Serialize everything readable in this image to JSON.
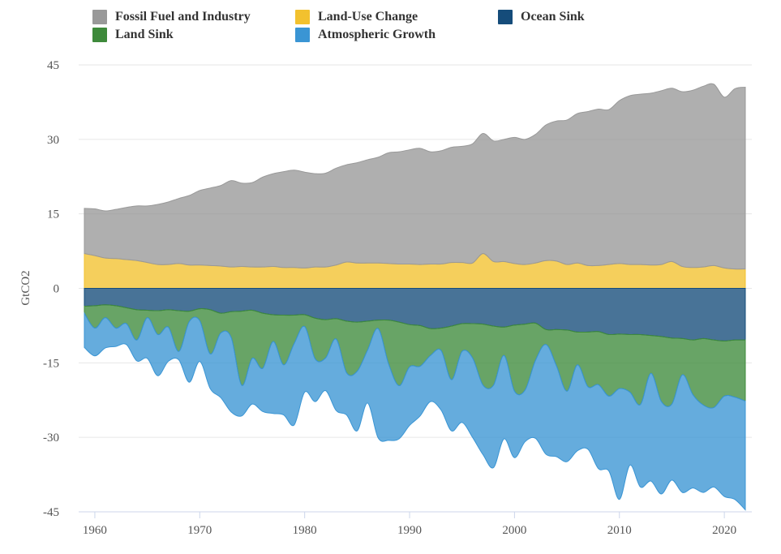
{
  "chart_data": {
    "type": "area",
    "ylabel": "GtCO2",
    "ylim": [
      -45,
      45
    ],
    "yticks": [
      45,
      30,
      15,
      0,
      -15,
      -30,
      -45
    ],
    "xlim": [
      1959,
      2022
    ],
    "xticks": [
      1960,
      1970,
      1980,
      1990,
      2000,
      2010,
      2020
    ],
    "grid": true,
    "legend_position": "top",
    "legend": [
      {
        "name": "Fossil Fuel and Industry",
        "color": "#999999"
      },
      {
        "name": "Land-Use Change",
        "color": "#f2c12e"
      },
      {
        "name": "Ocean Sink",
        "color": "#154c7a"
      },
      {
        "name": "Land Sink",
        "color": "#3e8a3b"
      },
      {
        "name": "Atmospheric Growth",
        "color": "#3a95d4"
      }
    ],
    "x": [
      1959,
      1960,
      1961,
      1962,
      1963,
      1964,
      1965,
      1966,
      1967,
      1968,
      1969,
      1970,
      1971,
      1972,
      1973,
      1974,
      1975,
      1976,
      1977,
      1978,
      1979,
      1980,
      1981,
      1982,
      1983,
      1984,
      1985,
      1986,
      1987,
      1988,
      1989,
      1990,
      1991,
      1992,
      1993,
      1994,
      1995,
      1996,
      1997,
      1998,
      1999,
      2000,
      2001,
      2002,
      2003,
      2004,
      2005,
      2006,
      2007,
      2008,
      2009,
      2010,
      2011,
      2012,
      2013,
      2014,
      2015,
      2016,
      2017,
      2018,
      2019,
      2020,
      2021,
      2022
    ],
    "upper_stack": [
      {
        "name": "Land-Use Change",
        "color": "#f2c12e",
        "values": [
          7.0,
          6.6,
          6.1,
          6.0,
          5.8,
          5.6,
          5.2,
          4.8,
          4.8,
          5.0,
          4.7,
          4.7,
          4.6,
          4.5,
          4.3,
          4.4,
          4.3,
          4.3,
          4.4,
          4.2,
          4.2,
          4.1,
          4.3,
          4.3,
          4.7,
          5.3,
          5.1,
          5.1,
          5.1,
          5.0,
          4.9,
          4.9,
          4.8,
          4.9,
          4.9,
          5.2,
          5.2,
          5.1,
          7.0,
          5.4,
          5.4,
          5.0,
          4.8,
          5.1,
          5.6,
          5.5,
          4.8,
          5.1,
          4.6,
          4.6,
          4.8,
          5.0,
          4.8,
          4.8,
          4.7,
          4.8,
          5.4,
          4.4,
          4.2,
          4.3,
          4.6,
          4.1,
          3.9,
          3.9
        ]
      },
      {
        "name": "Fossil Fuel and Industry",
        "color": "#999999",
        "values": [
          9.1,
          9.4,
          9.5,
          9.9,
          10.5,
          11.0,
          11.4,
          12.1,
          12.6,
          13.1,
          14.0,
          15.0,
          15.6,
          16.2,
          17.4,
          16.8,
          17.0,
          18.1,
          18.7,
          19.3,
          19.6,
          19.3,
          18.8,
          18.9,
          19.5,
          19.6,
          20.2,
          20.8,
          21.3,
          22.3,
          22.6,
          23.0,
          23.4,
          22.6,
          22.8,
          23.2,
          23.4,
          24.0,
          24.2,
          24.3,
          24.6,
          25.4,
          25.2,
          25.9,
          27.3,
          28.2,
          29.1,
          30.1,
          31.0,
          31.5,
          31.2,
          32.8,
          34.0,
          34.3,
          34.6,
          35.0,
          34.9,
          35.2,
          35.7,
          36.4,
          36.5,
          34.4,
          36.3,
          36.6
        ]
      }
    ],
    "lower_stack": [
      {
        "name": "Ocean Sink",
        "color": "#154c7a",
        "values": [
          -3.6,
          -3.5,
          -3.3,
          -3.5,
          -3.9,
          -4.3,
          -4.4,
          -4.5,
          -4.3,
          -4.5,
          -4.6,
          -4.1,
          -4.3,
          -5.0,
          -4.7,
          -4.6,
          -4.4,
          -5.0,
          -5.3,
          -5.4,
          -5.4,
          -5.3,
          -6.0,
          -6.3,
          -6.1,
          -6.6,
          -6.8,
          -6.6,
          -6.4,
          -6.4,
          -6.8,
          -7.3,
          -7.5,
          -8.1,
          -8.0,
          -7.6,
          -7.1,
          -7.1,
          -7.2,
          -7.6,
          -7.8,
          -7.4,
          -7.2,
          -7.0,
          -8.3,
          -8.3,
          -8.4,
          -8.8,
          -8.8,
          -8.7,
          -9.3,
          -9.2,
          -9.3,
          -9.3,
          -9.5,
          -9.7,
          -10.0,
          -10.1,
          -10.4,
          -10.1,
          -10.4,
          -10.6,
          -10.4,
          -10.4
        ]
      },
      {
        "name": "Land Sink",
        "color": "#3e8a3b",
        "values": [
          -1.4,
          -4.5,
          -2.6,
          -4.5,
          -3.2,
          -6.1,
          -1.5,
          -4.8,
          -3.5,
          -8.2,
          -2.1,
          -2.4,
          -8.9,
          -4.0,
          -5.2,
          -14.9,
          -9.7,
          -11.1,
          -5.4,
          -10.0,
          -5.7,
          -2.4,
          -8.2,
          -7.7,
          -4.1,
          -10.4,
          -9.9,
          -5.8,
          -1.7,
          -8.8,
          -12.8,
          -8.5,
          -8.2,
          -5.4,
          -4.5,
          -10.8,
          -5.6,
          -6.9,
          -12.3,
          -11.9,
          -5.7,
          -13.3,
          -13.3,
          -7.5,
          -3.0,
          -7.3,
          -12.3,
          -6.6,
          -11.0,
          -10.7,
          -12.4,
          -11.0,
          -11.6,
          -14.1,
          -7.6,
          -13.1,
          -13.3,
          -7.3,
          -11.0,
          -13.4,
          -13.6,
          -11.1,
          -11.5,
          -12.3
        ]
      },
      {
        "name": "Atmospheric Growth",
        "color": "#3a95d4",
        "values": [
          -6.9,
          -5.6,
          -6.1,
          -3.7,
          -4.2,
          -4.2,
          -8.2,
          -8.3,
          -6.9,
          -1.7,
          -12.2,
          -8.2,
          -7.0,
          -13.0,
          -15.0,
          -6.2,
          -9.2,
          -8.7,
          -14.5,
          -10.1,
          -16.4,
          -13.2,
          -8.6,
          -6.6,
          -14.4,
          -8.5,
          -12.0,
          -10.7,
          -22.0,
          -15.4,
          -10.7,
          -11.8,
          -10.0,
          -9.3,
          -12.0,
          -10.3,
          -14.3,
          -16.0,
          -14.0,
          -16.6,
          -16.8,
          -13.4,
          -10.4,
          -15.7,
          -22.1,
          -18.3,
          -14.2,
          -17.3,
          -12.6,
          -16.9,
          -15.1,
          -22.3,
          -14.7,
          -16.6,
          -21.7,
          -18.6,
          -15.3,
          -23.7,
          -18.8,
          -17.6,
          -16.0,
          -20.2,
          -20.6,
          -21.9
        ]
      }
    ]
  }
}
